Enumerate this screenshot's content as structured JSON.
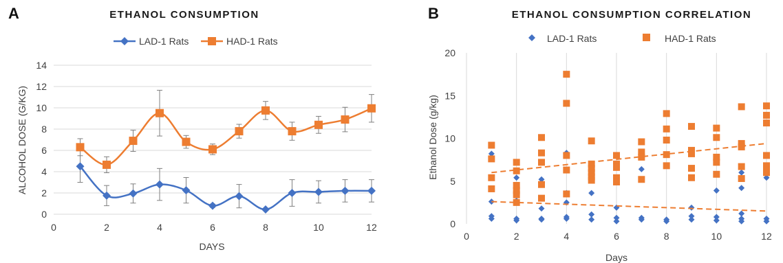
{
  "colors": {
    "lad": "#4472C4",
    "had": "#ED7D31",
    "grid": "#D9D9D9",
    "error": "#7F7F7F",
    "trend": "#ED7D31"
  },
  "chart_data": [
    {
      "panel": "A",
      "type": "line",
      "title": "ETHANOL CONSUMPTION",
      "xlabel": "DAYS",
      "ylabel": "ALCOHOL DOSE (G/KG)",
      "xlim": [
        0,
        12
      ],
      "ylim": [
        0,
        14
      ],
      "xticks": [
        0,
        2,
        4,
        6,
        8,
        10,
        12
      ],
      "yticks": [
        0,
        2,
        4,
        6,
        8,
        10,
        12,
        14
      ],
      "grid": "horizontal",
      "legend": "top-center",
      "x": [
        1,
        2,
        3,
        4,
        5,
        6,
        7,
        8,
        9,
        10,
        11,
        12
      ],
      "series": [
        {
          "name": "LAD-1 Rats",
          "marker": "diamond",
          "color": "#4472C4",
          "values": [
            4.5,
            1.75,
            1.95,
            2.8,
            2.25,
            0.8,
            1.7,
            0.45,
            2.0,
            2.1,
            2.2,
            2.2
          ],
          "error": [
            1.5,
            0.95,
            0.9,
            1.5,
            1.2,
            0.15,
            1.1,
            0.1,
            1.25,
            1.05,
            1.05,
            1.05
          ]
        },
        {
          "name": "HAD-1 Rats",
          "marker": "square",
          "color": "#ED7D31",
          "values": [
            6.3,
            4.65,
            6.9,
            9.5,
            6.8,
            6.1,
            7.8,
            9.75,
            7.8,
            8.4,
            8.9,
            9.95
          ],
          "error": [
            0.8,
            0.75,
            1.0,
            2.15,
            0.6,
            0.5,
            0.65,
            0.85,
            0.85,
            0.8,
            1.15,
            1.3
          ]
        }
      ]
    },
    {
      "panel": "B",
      "type": "scatter",
      "title": "ETHANOL CONSUMPTION CORRELATION",
      "xlabel": "Days",
      "ylabel": "Ethanol Dose (g/kg)",
      "xlim": [
        0,
        12
      ],
      "ylim": [
        0,
        20
      ],
      "xticks": [
        0,
        2,
        4,
        6,
        8,
        10,
        12
      ],
      "yticks": [
        0,
        5,
        10,
        15,
        20
      ],
      "grid": "vertical",
      "legend": "top-center",
      "series": [
        {
          "name": "LAD-1 Rats",
          "marker": "diamond",
          "color": "#4472C4",
          "points": [
            [
              1,
              8.2
            ],
            [
              1,
              2.6
            ],
            [
              1,
              0.9
            ],
            [
              1,
              0.6
            ],
            [
              2,
              5.4
            ],
            [
              2,
              2.7
            ],
            [
              2,
              0.6
            ],
            [
              2,
              0.4
            ],
            [
              3,
              5.2
            ],
            [
              3,
              1.8
            ],
            [
              3,
              0.6
            ],
            [
              3,
              0.5
            ],
            [
              4,
              8.3
            ],
            [
              4,
              3.6
            ],
            [
              4,
              2.5
            ],
            [
              4,
              0.8
            ],
            [
              4,
              0.6
            ],
            [
              5,
              3.6
            ],
            [
              5,
              1.1
            ],
            [
              5,
              0.5
            ],
            [
              6,
              1.9
            ],
            [
              6,
              0.7
            ],
            [
              6,
              0.3
            ],
            [
              7,
              6.4
            ],
            [
              7,
              0.7
            ],
            [
              7,
              0.5
            ],
            [
              8,
              0.5
            ],
            [
              8,
              0.3
            ],
            [
              9,
              1.9
            ],
            [
              9,
              0.9
            ],
            [
              9,
              0.5
            ],
            [
              10,
              3.9
            ],
            [
              10,
              0.8
            ],
            [
              10,
              0.4
            ],
            [
              11,
              6.0
            ],
            [
              11,
              4.2
            ],
            [
              11,
              1.2
            ],
            [
              11,
              0.6
            ],
            [
              11,
              0.3
            ],
            [
              12,
              5.4
            ],
            [
              12,
              0.6
            ],
            [
              12,
              0.3
            ]
          ],
          "trend": [
            [
              1,
              2.6
            ],
            [
              12,
              1.5
            ]
          ]
        },
        {
          "name": "HAD-1 Rats",
          "marker": "square",
          "color": "#ED7D31",
          "points": [
            [
              1,
              9.2
            ],
            [
              1,
              7.6
            ],
            [
              1,
              5.4
            ],
            [
              1,
              4.1
            ],
            [
              2,
              7.2
            ],
            [
              2,
              6.2
            ],
            [
              2,
              4.5
            ],
            [
              2,
              3.9
            ],
            [
              2,
              3.4
            ],
            [
              2,
              2.5
            ],
            [
              3,
              10.1
            ],
            [
              3,
              8.3
            ],
            [
              3,
              7.2
            ],
            [
              3,
              4.6
            ],
            [
              3,
              3.0
            ],
            [
              4,
              17.5
            ],
            [
              4,
              14.1
            ],
            [
              4,
              8.0
            ],
            [
              4,
              6.3
            ],
            [
              4,
              3.5
            ],
            [
              5,
              9.7
            ],
            [
              5,
              7.0
            ],
            [
              5,
              6.5
            ],
            [
              5,
              6.0
            ],
            [
              5,
              5.5
            ],
            [
              5,
              5.1
            ],
            [
              6,
              8.0
            ],
            [
              6,
              7.0
            ],
            [
              6,
              6.6
            ],
            [
              6,
              5.4
            ],
            [
              6,
              4.9
            ],
            [
              7,
              9.6
            ],
            [
              7,
              8.4
            ],
            [
              7,
              7.8
            ],
            [
              7,
              5.2
            ],
            [
              8,
              12.9
            ],
            [
              8,
              11.1
            ],
            [
              8,
              9.8
            ],
            [
              8,
              8.1
            ],
            [
              8,
              6.8
            ],
            [
              9,
              11.4
            ],
            [
              9,
              8.6
            ],
            [
              9,
              8.2
            ],
            [
              9,
              6.5
            ],
            [
              9,
              5.4
            ],
            [
              10,
              11.2
            ],
            [
              10,
              10.1
            ],
            [
              10,
              7.8
            ],
            [
              10,
              7.2
            ],
            [
              10,
              5.8
            ],
            [
              11,
              13.7
            ],
            [
              11,
              9.4
            ],
            [
              11,
              9.0
            ],
            [
              11,
              6.7
            ],
            [
              11,
              5.3
            ],
            [
              12,
              13.8
            ],
            [
              12,
              12.7
            ],
            [
              12,
              11.8
            ],
            [
              12,
              8.0
            ],
            [
              12,
              6.8
            ],
            [
              12,
              6.3
            ],
            [
              12,
              6.0
            ]
          ],
          "trend": [
            [
              1,
              6.0
            ],
            [
              12,
              9.4
            ]
          ]
        }
      ]
    }
  ]
}
